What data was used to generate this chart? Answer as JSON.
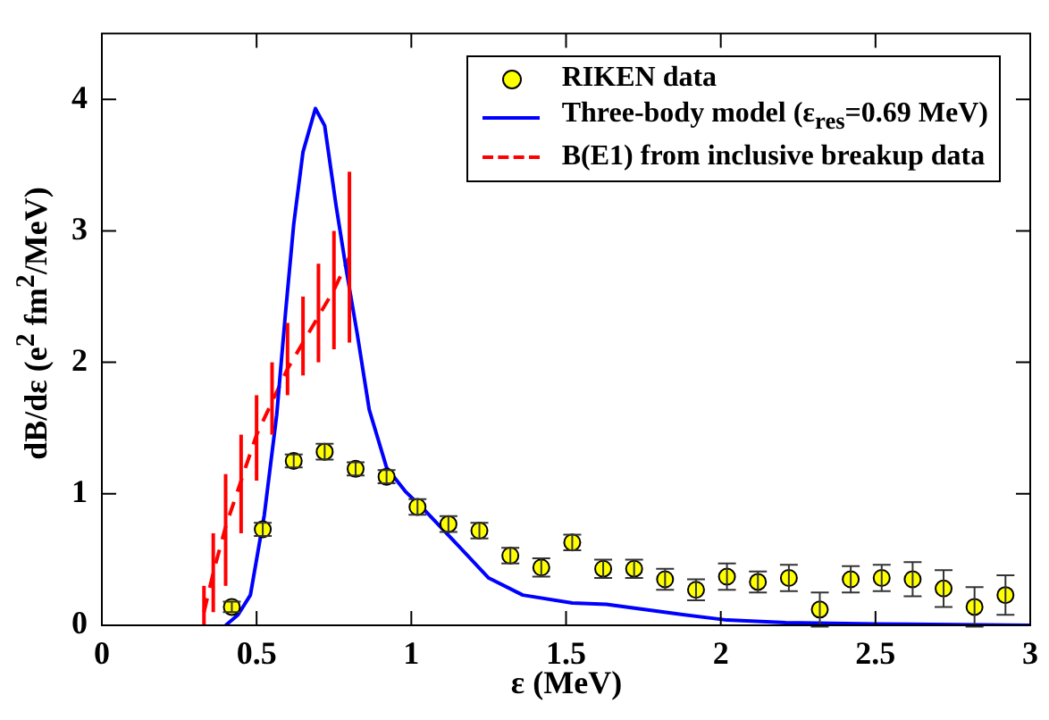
{
  "chart_data": {
    "type": "scatter",
    "xlabel": "ε  (MeV)",
    "ylabel": "dB/dε (e$^{2}$ fm$^{2}$/MeV)",
    "xlim": [
      0,
      3
    ],
    "xticks": [
      0,
      0.5,
      1,
      1.5,
      2,
      2.5,
      3
    ],
    "ylim": [
      0,
      4.5
    ],
    "yticks": [
      0,
      1,
      2,
      3,
      4
    ],
    "grid": false,
    "legend": "top right",
    "marker": "circle",
    "series": [
      {
        "name": "RIKEN data",
        "color": "#ffff00",
        "x": [
          0.42,
          0.52,
          0.62,
          0.72,
          0.82,
          0.92,
          1.02,
          1.12,
          1.22,
          1.32,
          1.42,
          1.52,
          1.62,
          1.72,
          1.82,
          1.92,
          2.02,
          2.12,
          2.22,
          2.32,
          2.42,
          2.52,
          2.62,
          2.72,
          2.82,
          2.92
        ],
        "values": [
          0.14,
          0.73,
          1.25,
          1.32,
          1.19,
          1.13,
          0.9,
          0.77,
          0.72,
          0.53,
          0.44,
          0.63,
          0.43,
          0.43,
          0.35,
          0.27,
          0.37,
          0.33,
          0.36,
          0.12,
          0.35,
          0.36,
          0.35,
          0.28,
          0.14,
          0.23
        ],
        "errors": [
          0.04,
          0.05,
          0.05,
          0.06,
          0.05,
          0.05,
          0.06,
          0.06,
          0.06,
          0.06,
          0.07,
          0.06,
          0.07,
          0.07,
          0.08,
          0.08,
          0.1,
          0.08,
          0.1,
          0.13,
          0.1,
          0.1,
          0.13,
          0.14,
          0.15,
          0.15
        ]
      },
      {
        "name": "Three-body model (ε$_{res}$=0.69 MeV)",
        "type": "line",
        "color": "#0000ff",
        "marker": "none",
        "line_style": "solid",
        "x": [
          0.4,
          0.44,
          0.48,
          0.525,
          0.565,
          0.594,
          0.62,
          0.65,
          0.69,
          0.72,
          0.757,
          0.79,
          0.825,
          0.864,
          0.92,
          0.98,
          1.037,
          1.13,
          1.25,
          1.36,
          1.52,
          1.63,
          1.85,
          2.02,
          2.21,
          2.5,
          3
        ],
        "values": [
          0,
          0.08,
          0.23,
          0.84,
          1.6,
          2.39,
          3.05,
          3.6,
          3.93,
          3.8,
          3.19,
          2.7,
          2.22,
          1.64,
          1.2,
          1.02,
          0.89,
          0.66,
          0.36,
          0.23,
          0.17,
          0.16,
          0.09,
          0.04,
          0.02,
          0.01,
          0
        ]
      },
      {
        "name": "B(E1) from inclusive breakup data",
        "type": "line",
        "color": "#ff0000",
        "marker": "none",
        "line_style": "dashed",
        "x": [
          0.33,
          0.36,
          0.4,
          0.45,
          0.5,
          0.55,
          0.6,
          0.65,
          0.7,
          0.75,
          0.8
        ],
        "values": [
          0.1,
          0.4,
          0.75,
          1.1,
          1.45,
          1.7,
          1.95,
          2.15,
          2.35,
          2.55,
          2.8
        ],
        "errors": [
          [
            0,
            0.3
          ],
          [
            0.1,
            0.7
          ],
          [
            0.3,
            1.15
          ],
          [
            0.7,
            1.45
          ],
          [
            1.1,
            1.75
          ],
          [
            1.45,
            2
          ],
          [
            1.75,
            2.3
          ],
          [
            1.9,
            2.5
          ],
          [
            2,
            2.75
          ],
          [
            2.1,
            3
          ],
          [
            2.15,
            3.45
          ]
        ]
      }
    ]
  }
}
